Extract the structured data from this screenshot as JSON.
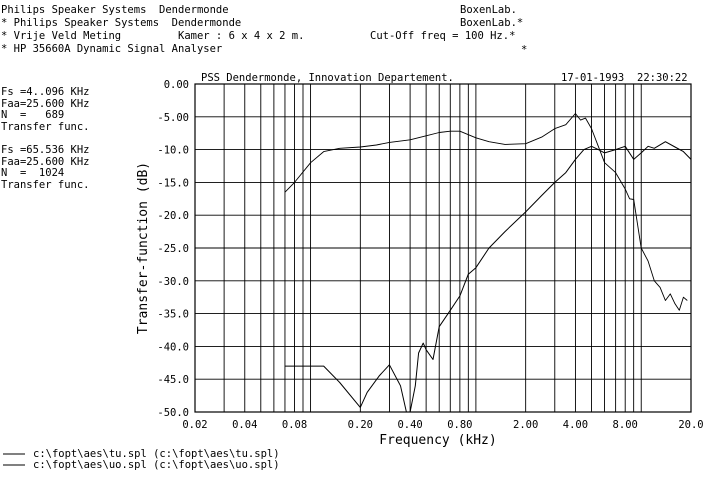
{
  "header": {
    "lines": [
      "Philips Speaker Systems  Dendermonde",
      "* Philips Speaker Systems  Dendermonde",
      "* Vrije Veld Meting",
      "* HP 35660A Dynamic Signal Analyser"
    ],
    "kamer": "Kamer : 6 x 4 x 2 m.",
    "cutoff": "Cut-Off freq = 100 Hz.*",
    "boxen1": "BoxenLab.",
    "boxen2": "BoxenLab.*",
    "star": "*"
  },
  "params": [
    {
      "fs": "Fs =4..096 KHz",
      "faa": "Faa=25.600 KHz",
      "n": "N  =   689",
      "func": "Transfer func."
    },
    {
      "fs": "Fs =65.536 KHz",
      "faa": "Faa=25.600 KHz",
      "n": "N  =  1024",
      "func": "Transfer func."
    }
  ],
  "chart_data": {
    "type": "line",
    "title": "PSS Dendermonde, Innovation Departement.",
    "date": "17-01-1993",
    "time": "22:30:22",
    "xlabel": "Frequency (kHz)",
    "ylabel": "Transfer-function (dB)",
    "xscale": "log",
    "xlim": [
      0.02,
      20.0
    ],
    "ylim": [
      -50.0,
      0.0
    ],
    "grid": true,
    "xticks": [
      0.02,
      0.04,
      0.08,
      0.2,
      0.4,
      0.8,
      2,
      4,
      8,
      20
    ],
    "xtick_labels": [
      "0.02",
      "0.04",
      "0.08",
      "0.20",
      "0.40",
      "0.80",
      "2.00",
      "4.00",
      "8.00",
      "20.0"
    ],
    "yticks": [
      0,
      -5,
      -10,
      -15,
      -20,
      -25,
      -30,
      -35,
      -40,
      -45,
      -50
    ],
    "ytick_labels": [
      "0.00",
      "-5.00",
      "-10.0",
      "-15.0",
      "-20.0",
      "-25.0",
      "-30.0",
      "-35.0",
      "-40.0",
      "-45.0",
      "-50.0"
    ],
    "series": [
      {
        "name": "c:\\fopt\\aes\\tu.spl (c:\\fopt\\aes\\tu.spl)",
        "x": [
          0.07,
          0.08,
          0.1,
          0.12,
          0.15,
          0.2,
          0.25,
          0.3,
          0.4,
          0.5,
          0.6,
          0.7,
          0.8,
          1.0,
          1.2,
          1.5,
          2.0,
          2.5,
          3.0,
          3.5,
          4.0,
          4.3,
          4.6,
          5.0,
          5.5,
          6.0,
          7.0,
          8.0,
          8.5,
          9.0,
          10.0,
          11.0,
          12.0,
          13.0,
          14.0,
          15.0,
          16.0,
          17.0,
          18.0,
          19.0
        ],
        "y": [
          -16.5,
          -15,
          -12,
          -10.3,
          -9.8,
          -9.6,
          -9.3,
          -8.9,
          -8.5,
          -7.9,
          -7.4,
          -7.2,
          -7.2,
          -8.2,
          -8.8,
          -9.2,
          -9.1,
          -8.1,
          -6.8,
          -6.2,
          -4.5,
          -5.5,
          -5.2,
          -6.8,
          -9.5,
          -12,
          -13.5,
          -16,
          -17.5,
          -17.6,
          -25,
          -27,
          -30,
          -31,
          -33,
          -32,
          -33.5,
          -34.5,
          -32.5,
          -33
        ]
      },
      {
        "name": "c:\\fopt\\aes\\uo.spl (c:\\fopt\\aes\\uo.spl)",
        "x": [
          0.07,
          0.1,
          0.12,
          0.15,
          0.2,
          0.22,
          0.26,
          0.3,
          0.35,
          0.38,
          0.4,
          0.43,
          0.45,
          0.48,
          0.5,
          0.55,
          0.6,
          0.7,
          0.8,
          0.9,
          1.0,
          1.2,
          1.5,
          2.0,
          2.5,
          3.0,
          3.5,
          4.0,
          4.5,
          5.0,
          5.5,
          6.0,
          7.0,
          8.0,
          9.0,
          10.0,
          11.0,
          12.0,
          14.0,
          16.0,
          18.0,
          20.0
        ],
        "y": [
          -43,
          -43,
          -43,
          -45.5,
          -49.3,
          -47,
          -44.5,
          -42.8,
          -46,
          -50,
          -50,
          -46,
          -41,
          -39.5,
          -40.5,
          -42,
          -37,
          -34.5,
          -32.3,
          -29,
          -28,
          -25,
          -22.5,
          -19.5,
          -17,
          -15,
          -13.5,
          -11.5,
          -10,
          -9.5,
          -10,
          -10.5,
          -10,
          -9.5,
          -11.5,
          -10.5,
          -9.5,
          -9.8,
          -8.8,
          -9.6,
          -10.3,
          -11.5
        ]
      }
    ]
  }
}
